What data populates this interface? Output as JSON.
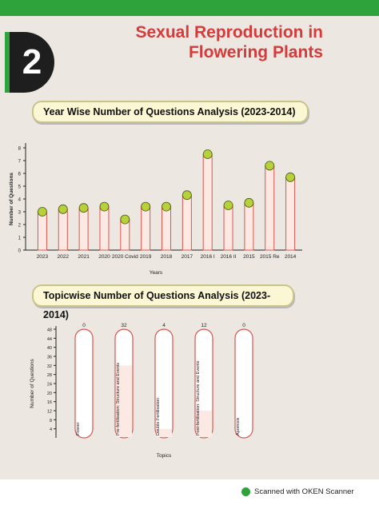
{
  "chapter": {
    "number": "2",
    "title_line1": "Sexual Reproduction in",
    "title_line2": "Flowering Plants"
  },
  "colors": {
    "accent": "#2fa33b",
    "title": "#d63a3a",
    "bar_outline": "#d9574f",
    "bar_fill": "#fde9e4",
    "marker": "#b7d13a"
  },
  "footer": {
    "text": "Scanned with OKEN Scanner",
    "icon": "oken-scanner-icon"
  },
  "chart_data": [
    {
      "type": "bar",
      "title": "Year Wise Number of Questions Analysis (2023-2014)",
      "xlabel": "Years",
      "ylabel": "Number of Questions",
      "ylim": [
        0,
        8
      ],
      "yticks": [
        0,
        1,
        2,
        3,
        4,
        5,
        6,
        7,
        8
      ],
      "categories": [
        "2023",
        "2022",
        "2021",
        "2020",
        "2020 Covid",
        "2019",
        "2018",
        "2017",
        "2016 I",
        "2016 II",
        "2015",
        "2015 Re",
        "2014"
      ],
      "values": [
        3,
        3.2,
        3.3,
        3.4,
        2.4,
        3.4,
        3.4,
        4.3,
        7.5,
        3.5,
        3.7,
        6.6,
        5.7
      ],
      "grid": false
    },
    {
      "type": "bar",
      "title": "Topicwise Number of Questions Analysis (2023-2014)",
      "xlabel": "Topics",
      "ylabel": "Number of Questions",
      "ylim": [
        0,
        48
      ],
      "yticks": [
        4,
        8,
        12,
        16,
        20,
        24,
        28,
        32,
        36,
        40,
        44,
        48
      ],
      "categories": [
        "Flower",
        "Pre-fertilisation: Structure and Events",
        "Double Fertilisation",
        "Post-fertilisation: Structure and Events",
        "Apomixis"
      ],
      "values": [
        0,
        32,
        4,
        12,
        0
      ],
      "data_labels": [
        "0",
        "32",
        "4",
        "12",
        "0"
      ],
      "grid": false
    }
  ]
}
